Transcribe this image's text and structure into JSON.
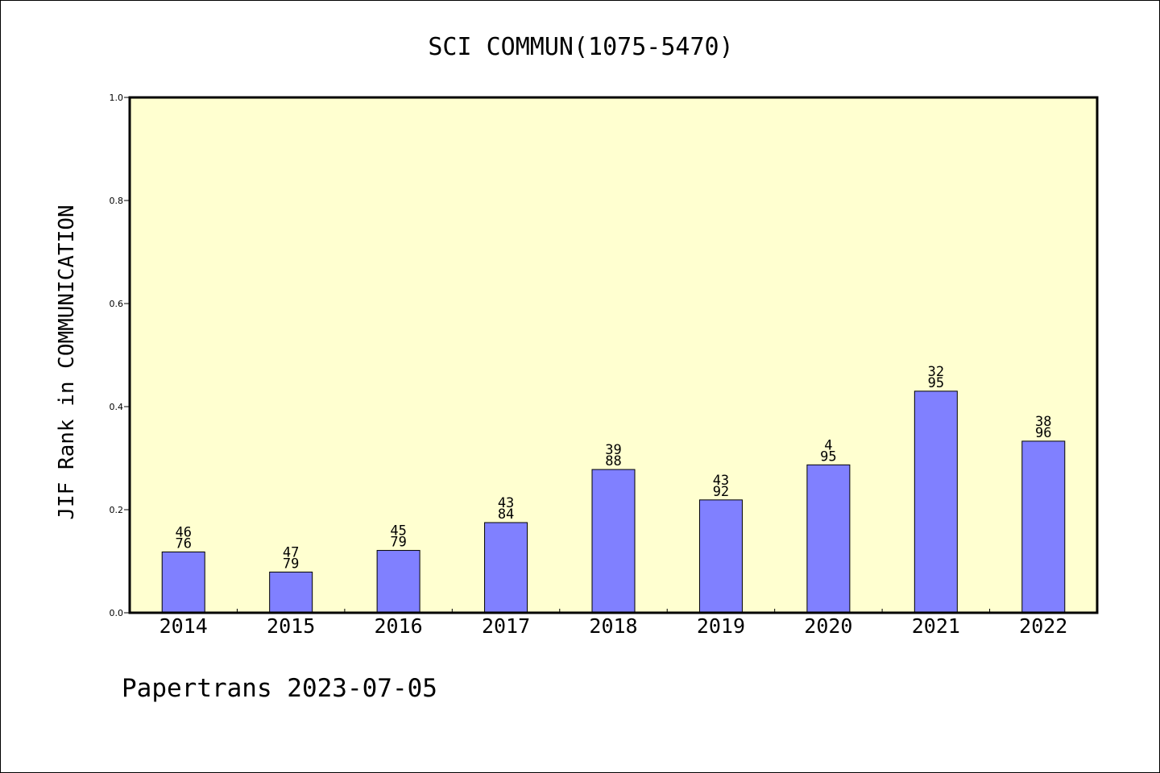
{
  "chart_data": {
    "type": "bar",
    "title": "SCI COMMUN(1075-5470)",
    "xlabel": "",
    "ylabel": "JIF Rank in COMMUNICATION",
    "ylim": [
      0,
      1.0
    ],
    "yticks": [
      "0.0",
      "0.2",
      "0.4",
      "0.6",
      "0.8",
      "1.0"
    ],
    "categories": [
      "2014",
      "2015",
      "2016",
      "2017",
      "2018",
      "2019",
      "2020",
      "2021",
      "2022"
    ],
    "values": [
      0.118,
      0.079,
      0.121,
      0.175,
      0.278,
      0.219,
      0.287,
      0.43,
      0.333
    ],
    "rank_labels": [
      {
        "rank": "46",
        "total": "76"
      },
      {
        "rank": "47",
        "total": "79"
      },
      {
        "rank": "45",
        "total": "79"
      },
      {
        "rank": "43",
        "total": "84"
      },
      {
        "rank": "39",
        "total": "88"
      },
      {
        "rank": "43",
        "total": "92"
      },
      {
        "rank": "4",
        "total": "95"
      },
      {
        "rank": "32",
        "total": "95"
      },
      {
        "rank": "38",
        "total": "96"
      }
    ],
    "grid": false,
    "legend": "none"
  },
  "footer": "Papertrans 2023-07-05",
  "colors": {
    "plot_background": "#ffffd0",
    "bar_fill": "#8080ff",
    "bar_stroke": "#000000",
    "axis": "#000000"
  }
}
